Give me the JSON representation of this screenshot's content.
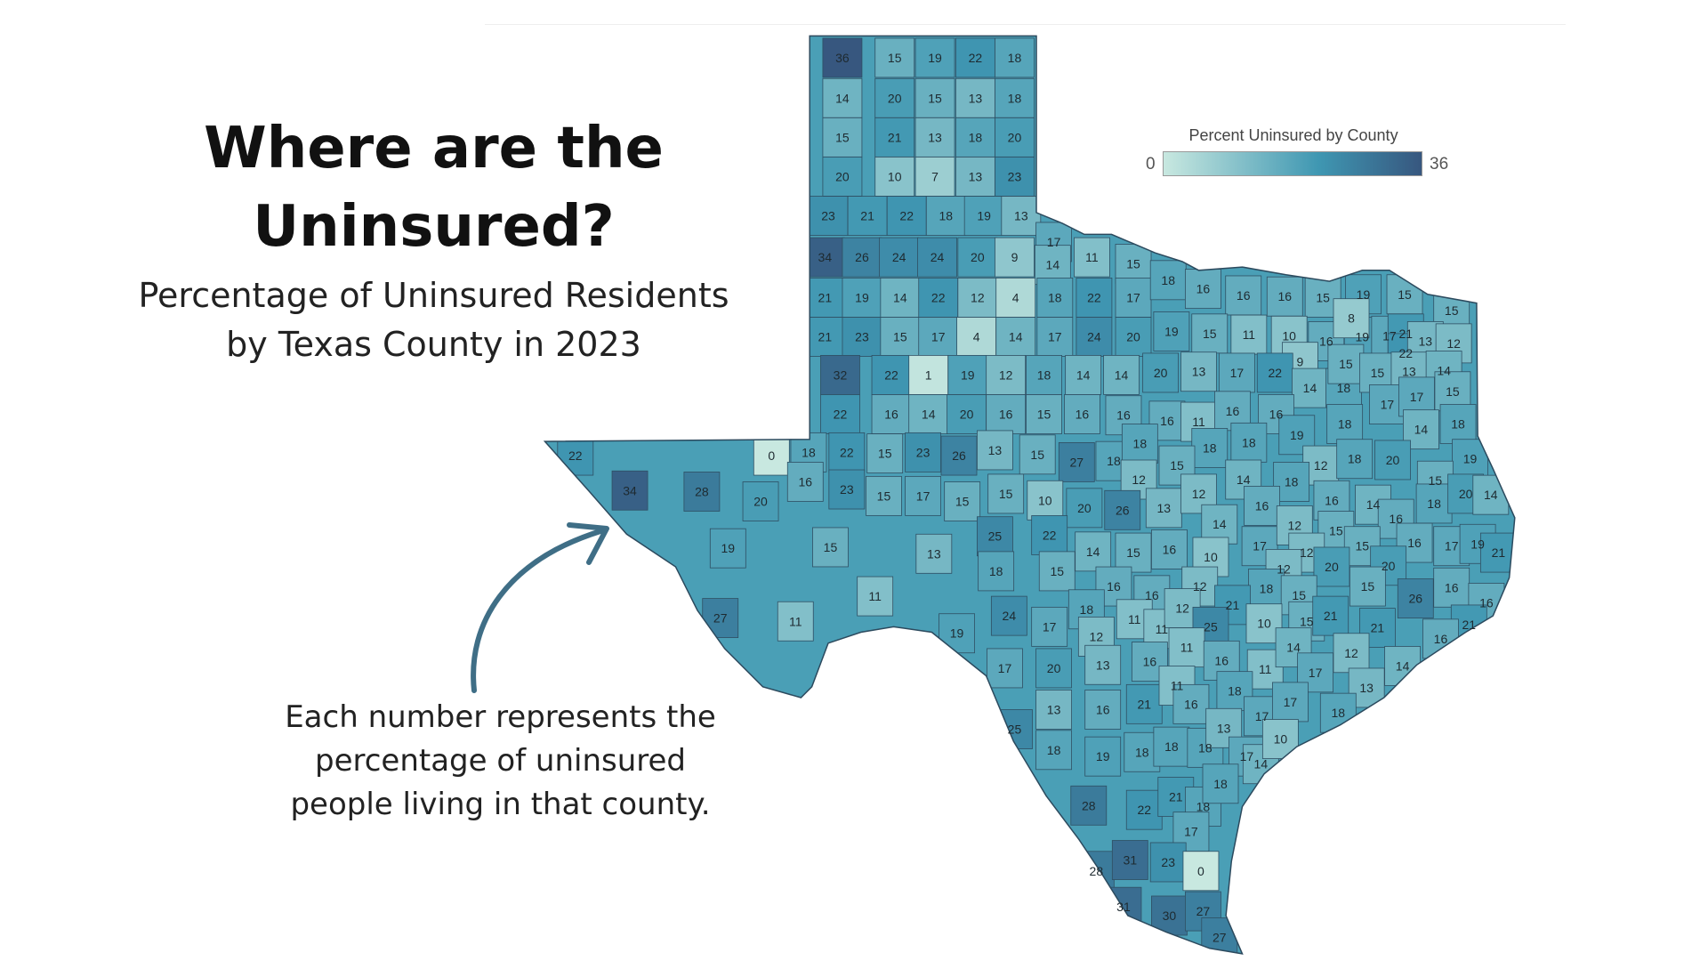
{
  "title": {
    "line1": "Where are the",
    "line2": "Uninsured?"
  },
  "subtitle": {
    "line1": "Percentage of Uninsured Residents",
    "line2": "by Texas County in 2023"
  },
  "note": {
    "line1": "Each number represents the",
    "line2": "percentage of uninsured",
    "line3": "people living in that county."
  },
  "legend": {
    "title": "Percent Uninsured by County",
    "min": "0",
    "max": "36",
    "color_low": "#c8e8e0",
    "color_mid": "#3f97b2",
    "color_high": "#37577f"
  },
  "map": {
    "county_values": [
      "36",
      "15",
      "19",
      "22",
      "18",
      "14",
      "20",
      "15",
      "13",
      "18",
      "15",
      "21",
      "13",
      "18",
      "20",
      "20",
      "10",
      "7",
      "13",
      "23",
      "23",
      "21",
      "22",
      "18",
      "19",
      "13",
      "34",
      "26",
      "24",
      "24",
      "20",
      "9",
      "17",
      "14",
      "11",
      "15",
      "21",
      "19",
      "14",
      "22",
      "12",
      "4",
      "18",
      "22",
      "17",
      "18",
      "16",
      "16",
      "16",
      "15",
      "19",
      "15",
      "15",
      "21",
      "23",
      "15",
      "17",
      "4",
      "14",
      "17",
      "24",
      "20",
      "19",
      "15",
      "11",
      "10",
      "16",
      "19",
      "17",
      "21",
      "22",
      "13",
      "12",
      "8",
      "9",
      "32",
      "22",
      "1",
      "19",
      "12",
      "18",
      "14",
      "14",
      "20",
      "13",
      "17",
      "22",
      "14",
      "18",
      "15",
      "15",
      "13",
      "14",
      "15",
      "22",
      "16",
      "14",
      "20",
      "16",
      "15",
      "16",
      "16",
      "16",
      "11",
      "16",
      "16",
      "17",
      "17",
      "18",
      "14",
      "18",
      "22",
      "0",
      "18",
      "22",
      "15",
      "23",
      "26",
      "13",
      "15",
      "27",
      "18",
      "18",
      "18",
      "18",
      "19",
      "15",
      "12",
      "18",
      "20",
      "19",
      "34",
      "28",
      "16",
      "23",
      "15",
      "17",
      "15",
      "15",
      "10",
      "12",
      "14",
      "18",
      "16",
      "14",
      "15",
      "18",
      "20",
      "14",
      "20",
      "20",
      "26",
      "13",
      "12",
      "16",
      "16",
      "14",
      "19",
      "15",
      "13",
      "25",
      "22",
      "14",
      "15",
      "16",
      "10",
      "17",
      "12",
      "15",
      "15",
      "12",
      "16",
      "17",
      "19",
      "21",
      "11",
      "18",
      "15",
      "16",
      "16",
      "12",
      "12",
      "18",
      "20",
      "20",
      "15",
      "16",
      "26",
      "16",
      "21",
      "15",
      "27",
      "11",
      "19",
      "24",
      "18",
      "17",
      "12",
      "11",
      "11",
      "12",
      "25",
      "10",
      "15",
      "21",
      "21",
      "21",
      "16",
      "17",
      "20",
      "13",
      "16",
      "11",
      "16",
      "11",
      "14",
      "17",
      "12",
      "14",
      "13",
      "13",
      "16",
      "21",
      "11",
      "16",
      "18",
      "17",
      "17",
      "18",
      "25",
      "18",
      "19",
      "18",
      "18",
      "18",
      "13",
      "17",
      "14",
      "10",
      "28",
      "22",
      "21",
      "18",
      "18",
      "17",
      "28",
      "31",
      "23",
      "0",
      "31",
      "30",
      "27",
      "27"
    ]
  }
}
